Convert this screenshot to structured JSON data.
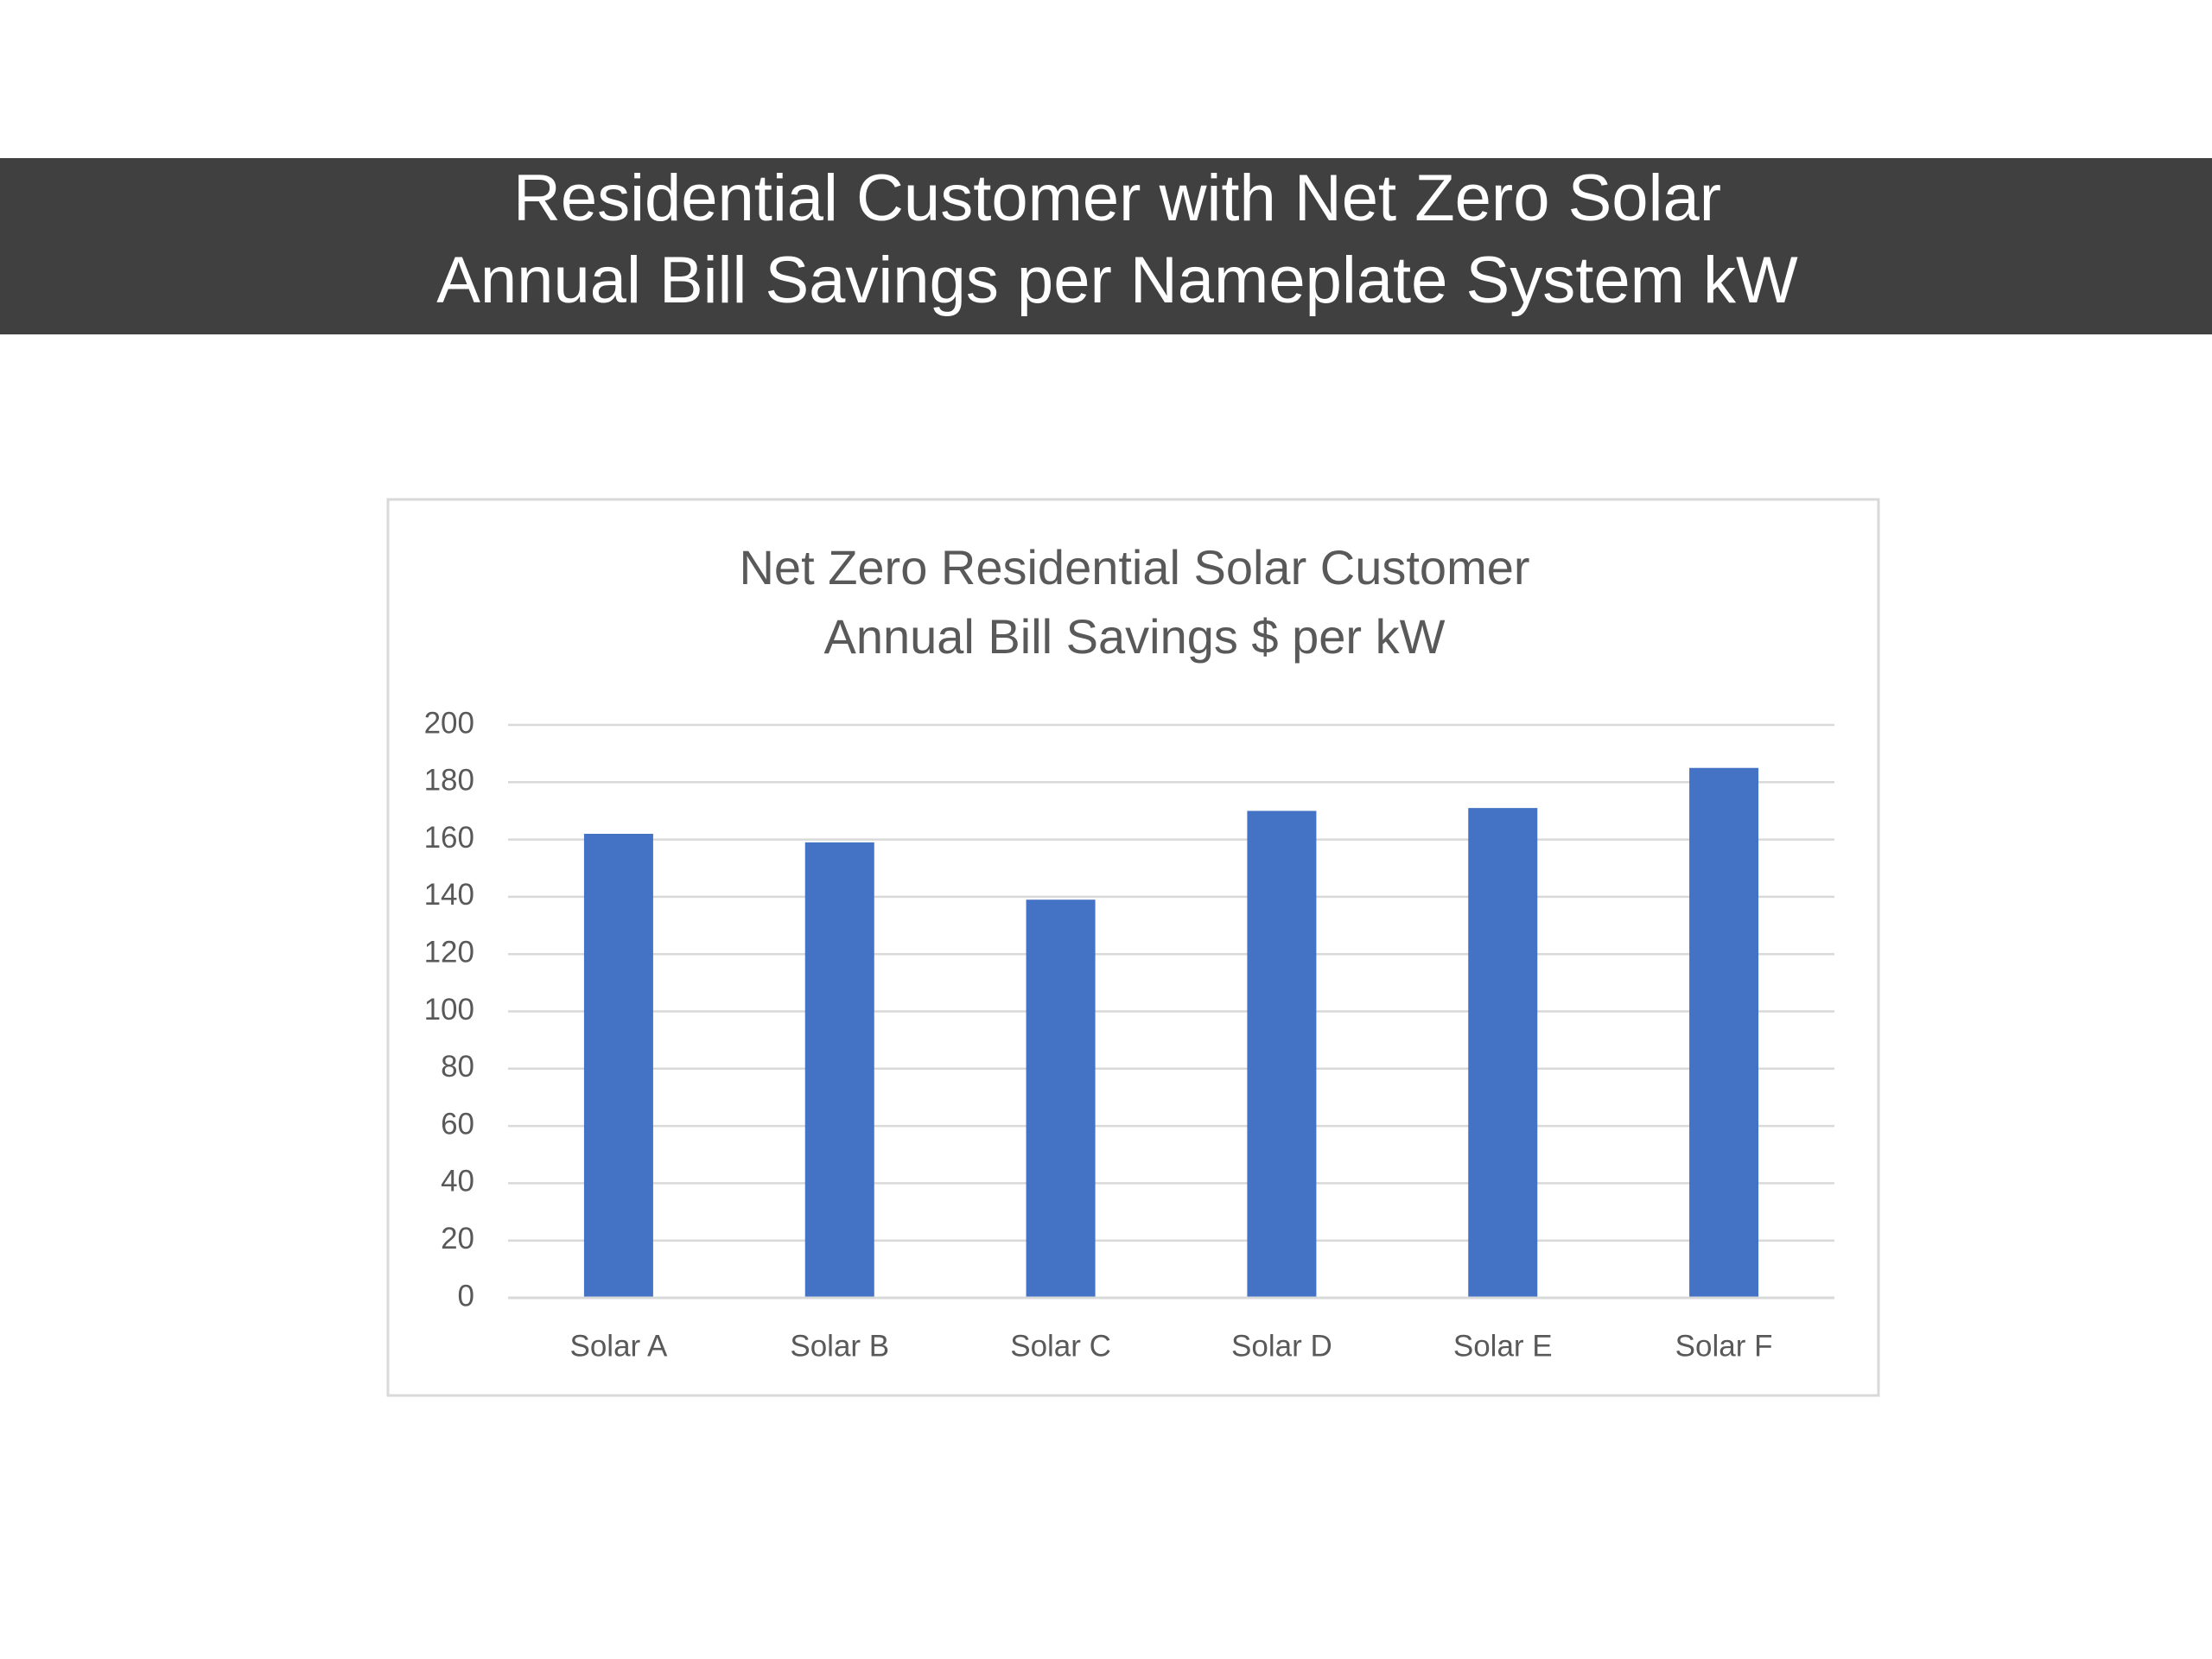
{
  "header": {
    "lines": [
      "Residential Customer with Net Zero Solar",
      "Annual Bill Savings per Nameplate System kW"
    ]
  },
  "chart_data": {
    "type": "bar",
    "title": [
      "Net Zero Residential Solar Customer",
      "Annual Bill Savings $ per kW"
    ],
    "categories": [
      "Solar A",
      "Solar B",
      "Solar C",
      "Solar D",
      "Solar E",
      "Solar F"
    ],
    "values": [
      162,
      159,
      139,
      170,
      171,
      185
    ],
    "color": "#4472c4",
    "ylim": [
      0,
      200
    ],
    "yticks": [
      0,
      20,
      40,
      60,
      80,
      100,
      120,
      140,
      160,
      180,
      200
    ],
    "grid": true
  }
}
